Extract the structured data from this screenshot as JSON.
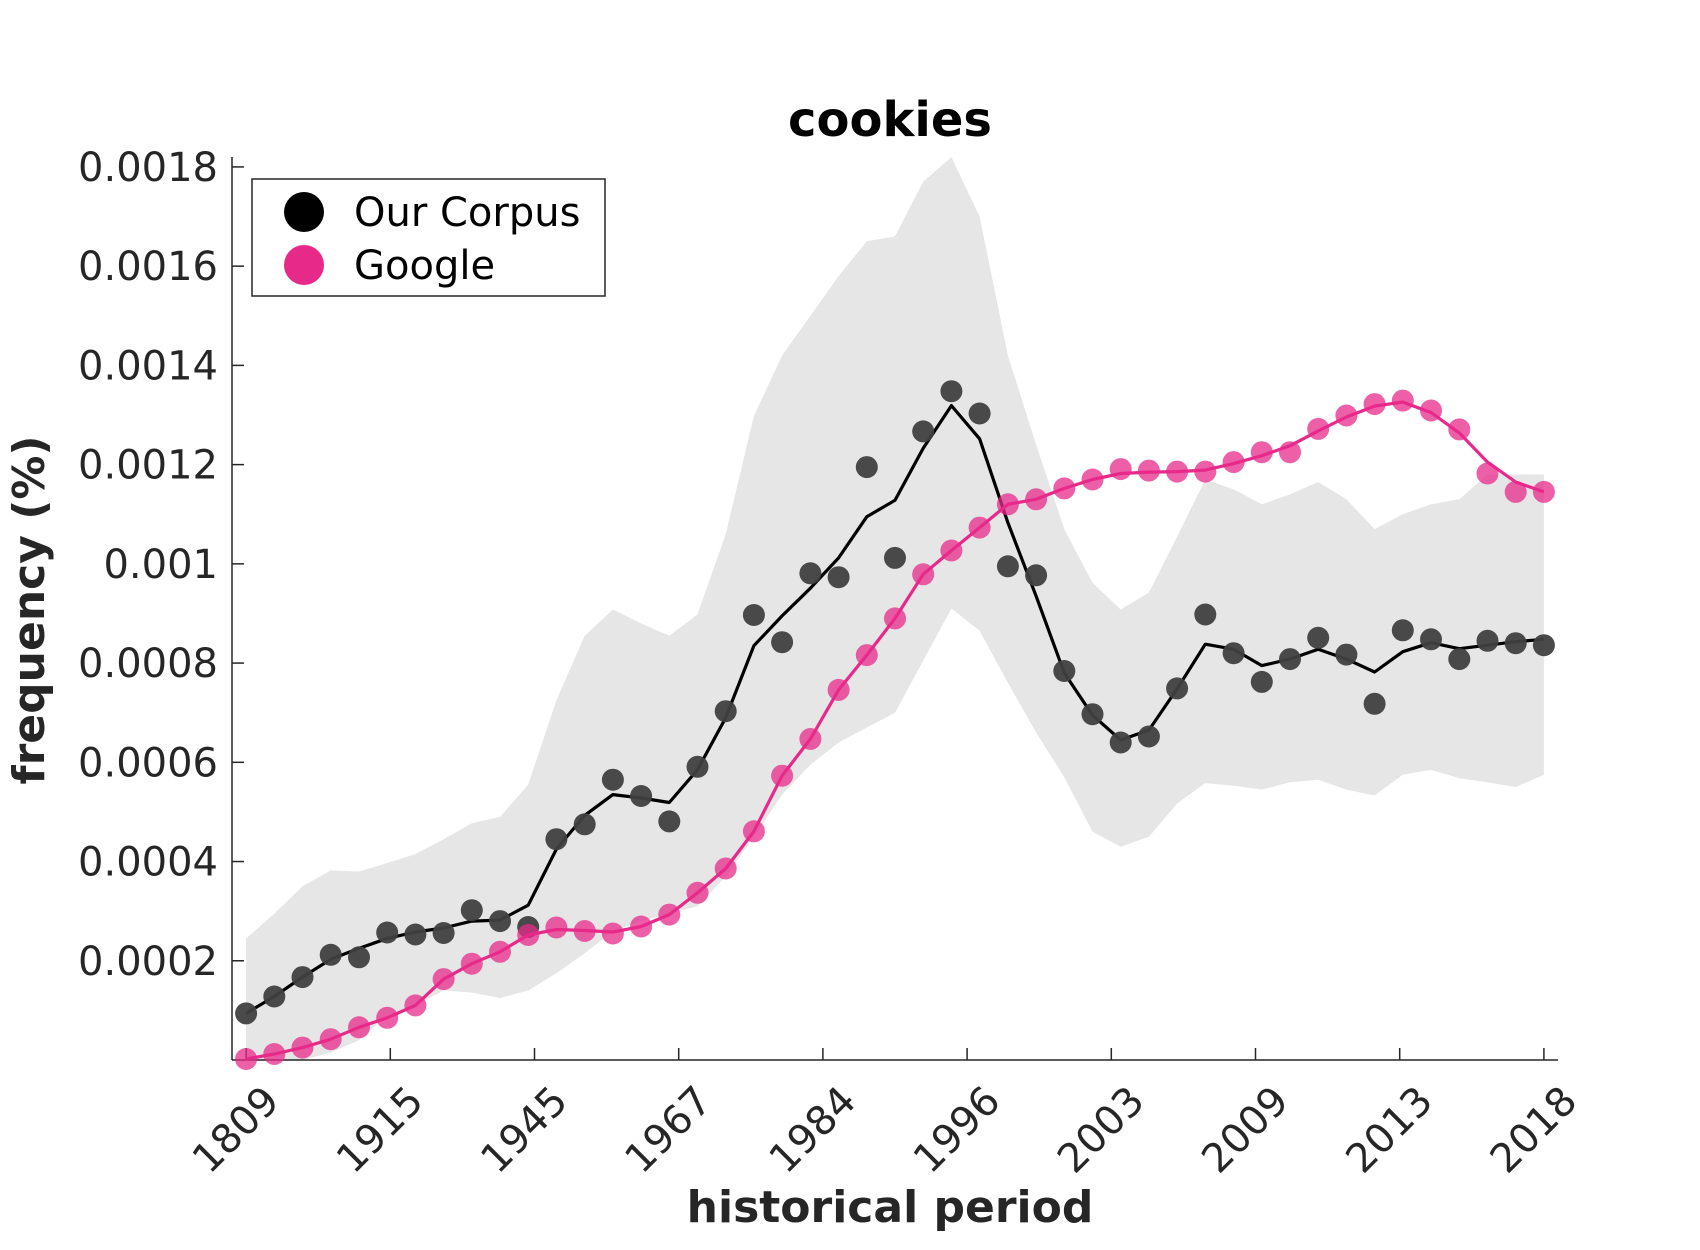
{
  "chart_data": {
    "type": "line",
    "title": "cookies",
    "xlabel": "historical period",
    "ylabel": "frequency (%)",
    "x_tick_labels": [
      "1809",
      "1915",
      "1945",
      "1967",
      "1984",
      "1996",
      "2003",
      "2009",
      "2013",
      "2018"
    ],
    "y_tick_labels": [
      "0.0002",
      "0.0004",
      "0.0006",
      "0.0008",
      "0.001",
      "0.0012",
      "0.0014",
      "0.0016",
      "0.0018"
    ],
    "y_ticks": [
      0.0002,
      0.0004,
      0.0006,
      0.0008,
      0.001,
      0.0012,
      0.0014,
      0.0016,
      0.0018
    ],
    "xlim": [
      0.5,
      47.5
    ],
    "ylim": [
      0.0,
      0.00182
    ],
    "grid": false,
    "legend_position": "top-left",
    "colors": {
      "our_corpus": "#000000",
      "our_corpus_points": "#404040",
      "google": "#e7298a",
      "band": "#e6e6e6"
    },
    "legend": [
      {
        "name": "Our Corpus",
        "color": "#000000"
      },
      {
        "name": "Google",
        "color": "#e7298a"
      }
    ],
    "series": [
      {
        "name": "Our Corpus",
        "x": [
          1,
          2,
          3,
          4,
          5,
          6,
          7,
          8,
          9,
          10,
          11,
          12,
          13,
          14,
          15,
          16,
          17,
          18,
          19,
          20,
          21,
          22,
          23,
          24,
          25,
          26,
          27,
          28,
          29,
          30,
          31,
          32,
          33,
          34,
          35,
          36,
          37,
          38,
          39,
          40,
          41,
          42,
          43,
          44,
          45,
          46,
          47
        ],
        "points": [
          9.4e-05,
          0.000128,
          0.000167,
          0.000212,
          0.000207,
          0.000257,
          0.000253,
          0.000256,
          0.000302,
          0.00028,
          0.000268,
          0.000445,
          0.000475,
          0.000565,
          0.000532,
          0.000481,
          0.000591,
          0.000703,
          0.000897,
          0.000842,
          0.000981,
          0.000973,
          0.001195,
          0.001012,
          0.001267,
          0.001348,
          0.001303,
          0.000995,
          0.000977,
          0.000784,
          0.000697,
          0.00064,
          0.000652,
          0.000749,
          0.000898,
          0.00082,
          0.000762,
          0.000808,
          0.000851,
          0.000817,
          0.000718,
          0.000866,
          0.000848,
          0.000808,
          0.000845,
          0.00084,
          0.000836
        ],
        "line": [
          9.4e-05,
          0.000128,
          0.000167,
          0.000203,
          0.000225,
          0.000245,
          0.000258,
          0.000266,
          0.00028,
          0.000282,
          0.000312,
          0.000425,
          0.000493,
          0.000535,
          0.000528,
          0.000519,
          0.000585,
          0.00069,
          0.000835,
          0.000895,
          0.000951,
          0.001012,
          0.001095,
          0.001128,
          0.001233,
          0.001319,
          0.001252,
          0.001083,
          0.000935,
          0.00078,
          0.000695,
          0.000645,
          0.000665,
          0.000748,
          0.000838,
          0.000828,
          0.000795,
          0.000808,
          0.000828,
          0.000808,
          0.000782,
          0.000823,
          0.000841,
          0.000829,
          0.000836,
          0.000843,
          0.000848
        ]
      },
      {
        "name": "Google",
        "x": [
          1,
          2,
          3,
          4,
          5,
          6,
          7,
          8,
          9,
          10,
          11,
          12,
          13,
          14,
          15,
          16,
          17,
          18,
          19,
          20,
          21,
          22,
          23,
          24,
          25,
          26,
          27,
          28,
          29,
          30,
          31,
          32,
          33,
          34,
          35,
          36,
          37,
          38,
          39,
          40,
          41,
          42,
          43,
          44,
          45,
          46,
          47
        ],
        "points": [
          2e-06,
          1.2e-05,
          2.5e-05,
          4.2e-05,
          6.6e-05,
          8.5e-05,
          0.00011,
          0.000163,
          0.000194,
          0.000218,
          0.000252,
          0.000267,
          0.00026,
          0.000255,
          0.000269,
          0.000293,
          0.000337,
          0.000386,
          0.000461,
          0.000573,
          0.000647,
          0.000746,
          0.000816,
          0.00089,
          0.000979,
          0.001027,
          0.001073,
          0.00112,
          0.00113,
          0.001152,
          0.00117,
          0.001191,
          0.001188,
          0.001186,
          0.001186,
          0.001205,
          0.001225,
          0.001225,
          0.001272,
          0.001299,
          0.001322,
          0.001329,
          0.001309,
          0.001271,
          0.001182,
          0.001145,
          0.001145
        ],
        "line": [
          2e-06,
          1.2e-05,
          2.5e-05,
          4.2e-05,
          6.6e-05,
          8.5e-05,
          0.00011,
          0.000163,
          0.000194,
          0.000218,
          0.000252,
          0.000263,
          0.000261,
          0.000258,
          0.000269,
          0.000293,
          0.000337,
          0.000386,
          0.000461,
          0.000573,
          0.000647,
          0.000746,
          0.000816,
          0.00089,
          0.000979,
          0.001027,
          0.001073,
          0.00112,
          0.00113,
          0.001152,
          0.00117,
          0.001182,
          0.001185,
          0.001186,
          0.001189,
          0.001202,
          0.001218,
          0.001238,
          0.001268,
          0.001296,
          0.001318,
          0.001326,
          0.001305,
          0.001264,
          0.001205,
          0.001165,
          0.001145
        ]
      }
    ],
    "band": {
      "name": "Our Corpus range",
      "x": [
        1,
        2,
        3,
        4,
        5,
        6,
        7,
        8,
        9,
        10,
        11,
        12,
        13,
        14,
        15,
        16,
        17,
        18,
        19,
        20,
        21,
        22,
        23,
        24,
        25,
        26,
        27,
        28,
        29,
        30,
        31,
        32,
        33,
        34,
        35,
        36,
        37,
        38,
        39,
        40,
        41,
        42,
        43,
        44,
        45,
        46,
        47
      ],
      "upper": [
        0.000245,
        0.000295,
        0.00035,
        0.000382,
        0.00038,
        0.000397,
        0.000415,
        0.000445,
        0.000477,
        0.00049,
        0.000555,
        0.000725,
        0.000855,
        0.000908,
        0.00088,
        0.000855,
        0.000898,
        0.00106,
        0.001298,
        0.00142,
        0.0015,
        0.00158,
        0.00165,
        0.00166,
        0.00177,
        0.00182,
        0.0017,
        0.00142,
        0.00124,
        0.00107,
        0.000962,
        0.000908,
        0.000942,
        0.001055,
        0.00117,
        0.00115,
        0.00112,
        0.00114,
        0.001165,
        0.00113,
        0.00107,
        0.0011,
        0.00112,
        0.00113,
        0.00118,
        0.00118,
        0.00118
      ],
      "lower": [
        0.0,
        0.0,
        0.0,
        1.5e-05,
        4e-05,
        9e-05,
        0.00011,
        0.00014,
        0.000136,
        0.000125,
        0.00014,
        0.000175,
        0.000215,
        0.00026,
        0.00028,
        0.000295,
        0.00031,
        0.00037,
        0.00045,
        0.000535,
        0.000595,
        0.00064,
        0.00067,
        0.0007,
        0.000805,
        0.00091,
        0.000865,
        0.00076,
        0.00066,
        0.00057,
        0.00046,
        0.00043,
        0.00045,
        0.000517,
        0.000558,
        0.000553,
        0.000545,
        0.00056,
        0.000565,
        0.000545,
        0.000533,
        0.000575,
        0.000585,
        0.000568,
        0.00056,
        0.00055,
        0.000575
      ]
    }
  }
}
